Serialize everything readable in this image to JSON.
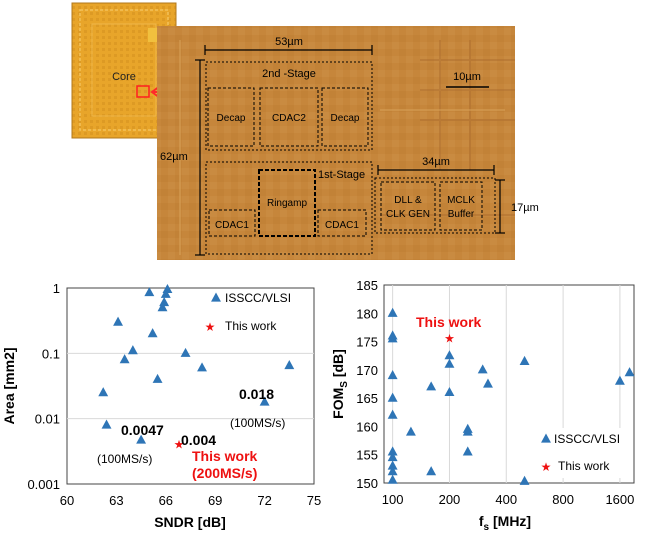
{
  "die_photo": {
    "inset_label": "Core",
    "width_label": "53µm",
    "height_label": "62µm",
    "scale_bar_label": "10µm",
    "stage2_label": "2nd -Stage",
    "stage1_label": "1st-Stage",
    "blocks": {
      "decap_left": "Decap",
      "cdac2": "CDAC2",
      "decap_right": "Decap",
      "ringamp": "Ringamp",
      "cdac1_left": "CDAC1",
      "cdac1_right": "CDAC1",
      "dll_line1": "DLL &",
      "dll_line2": "CLK GEN",
      "mclk_line1": "MCLK",
      "mclk_line2": "Buffer"
    },
    "clk_width_label": "34µm",
    "clk_height_label": "17µm"
  },
  "colors": {
    "marker": "#2e75b6",
    "highlight": "#ee1111",
    "die_bg": "#c7883a",
    "inset_bg": "#e8a52a"
  },
  "chart_data": [
    {
      "type": "scatter",
      "xlabel": "SNDR [dB]",
      "ylabel": "Area [mm2]",
      "yscale": "log",
      "xlim": [
        60,
        75
      ],
      "ylim": [
        0.001,
        1
      ],
      "xticks": [
        "60",
        "63",
        "66",
        "69",
        "72",
        "75"
      ],
      "yticks": [
        "0.001",
        "0.01",
        "0.1",
        "1"
      ],
      "legend_position": "top-right",
      "series": [
        {
          "name": "ISSCC/VLSI",
          "marker": "triangle",
          "points": [
            [
              62.2,
              0.025
            ],
            [
              62.4,
              0.008
            ],
            [
              63.1,
              0.3
            ],
            [
              63.5,
              0.08
            ],
            [
              64.0,
              0.11
            ],
            [
              64.5,
              0.0047
            ],
            [
              65.0,
              0.85
            ],
            [
              65.2,
              0.2
            ],
            [
              65.5,
              0.04
            ],
            [
              65.8,
              0.5
            ],
            [
              65.9,
              0.6
            ],
            [
              66.0,
              0.8
            ],
            [
              66.1,
              0.95
            ],
            [
              67.2,
              0.1
            ],
            [
              68.2,
              0.06
            ],
            [
              72.0,
              0.018
            ],
            [
              73.5,
              0.065
            ]
          ]
        },
        {
          "name": "This work",
          "marker": "star",
          "points": [
            [
              66.8,
              0.004
            ]
          ]
        }
      ],
      "annotations": {
        "p1_value": "0.018",
        "p1_rate": "(100MS/s)",
        "p2_value": "0.0047",
        "p2_rate": "(100MS/s)",
        "p3_value": "0.004",
        "this_work_line1": "This work",
        "this_work_line2": "(200MS/s)"
      }
    },
    {
      "type": "scatter",
      "xlabel": "fs [MHz]",
      "xlabel_main": "f",
      "xlabel_sub": "s",
      "xlabel_unit": " [MHz]",
      "ylabel": "FOMS [dB]",
      "ylabel_main": "FOM",
      "ylabel_sub": "S",
      "ylabel_unit": " [dB]",
      "xscale": "log",
      "xlim": [
        100,
        1800
      ],
      "ylim": [
        150,
        185
      ],
      "xticks": [
        "100",
        "200",
        "400",
        "800",
        "1600"
      ],
      "yticks": [
        "150",
        "155",
        "160",
        "165",
        "170",
        "175",
        "180",
        "185"
      ],
      "legend_position": "bottom-right",
      "series": [
        {
          "name": "ISSCC/VLSI",
          "marker": "triangle",
          "points": [
            [
              100,
              180
            ],
            [
              100,
              176
            ],
            [
              100,
              175.5
            ],
            [
              100,
              169
            ],
            [
              100,
              165
            ],
            [
              100,
              162
            ],
            [
              100,
              155.5
            ],
            [
              100,
              154.5
            ],
            [
              100,
              153
            ],
            [
              100,
              152
            ],
            [
              100,
              150.5
            ],
            [
              125,
              159
            ],
            [
              160,
              167
            ],
            [
              160,
              152
            ],
            [
              200,
              172.5
            ],
            [
              200,
              171
            ],
            [
              200,
              166
            ],
            [
              250,
              159.5
            ],
            [
              250,
              159
            ],
            [
              250,
              155.5
            ],
            [
              300,
              170
            ],
            [
              320,
              167.5
            ],
            [
              500,
              171.5
            ],
            [
              500,
              150.3
            ],
            [
              1600,
              168
            ],
            [
              1800,
              169.5
            ]
          ]
        },
        {
          "name": "This work",
          "marker": "star",
          "points": [
            [
              200,
              175.5
            ]
          ]
        }
      ],
      "annotations": {
        "this_work": "This work"
      }
    }
  ]
}
